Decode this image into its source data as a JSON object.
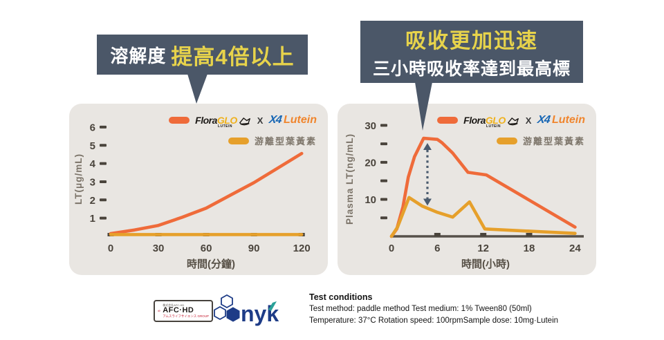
{
  "callouts": {
    "left": {
      "prefix": "溶解度",
      "highlight": "提高4倍以上"
    },
    "right": {
      "line1": "吸收更加迅速",
      "line2": "三小時吸收率達到最高標"
    }
  },
  "legend": {
    "brand_flora": "Flora",
    "brand_glo": "GLO",
    "brand_sub": "LUTEIN",
    "x_sep": "X",
    "partner_mark": "X4",
    "partner_name": "Lutein",
    "free_lutein": "游離型葉黃素"
  },
  "colors": {
    "floraglo_line": "#EF6B3A",
    "free_lutein_line": "#E6A02B",
    "callout_bg": "#4B5768",
    "callout_yellow": "#E7D34B",
    "card_bg": "#E9E6E2",
    "tick": "#4A443C",
    "axis_line": "#56504A",
    "arrow": "#4A5B6E"
  },
  "chart_data": [
    {
      "id": "solubility",
      "type": "line",
      "title": "",
      "xlabel": "時間(分鐘)",
      "ylabel": "LT(μg/mL)",
      "xlim": [
        0,
        126
      ],
      "ylim": [
        0,
        6.3
      ],
      "x_ticks": [
        0,
        30,
        60,
        90,
        120
      ],
      "x_tick_bars": [
        0,
        30,
        60,
        90,
        120
      ],
      "y_ticks": [
        1,
        2,
        3,
        4,
        5,
        6
      ],
      "y_tick_labels": [
        1,
        2,
        3,
        4,
        5,
        6
      ],
      "axis_line": false,
      "margin_left": 60,
      "ylabel_x": 18,
      "series": [
        {
          "name": "FloraGLO X4 Lutein",
          "color": "#EF6B3A",
          "x": [
            0,
            15,
            30,
            45,
            60,
            75,
            90,
            105,
            120
          ],
          "y": [
            0.15,
            0.35,
            0.6,
            1.05,
            1.55,
            2.25,
            2.95,
            3.75,
            4.55
          ]
        },
        {
          "name": "游離型葉黃素",
          "color": "#E6A02B",
          "x": [
            0,
            120
          ],
          "y": [
            0.1,
            0.1
          ]
        }
      ]
    },
    {
      "id": "absorption",
      "type": "line",
      "title": "",
      "xlabel": "時間(小時)",
      "ylabel": "Plasma LT(ng/mL)",
      "xlim": [
        0,
        24.6
      ],
      "ylim": [
        0,
        31
      ],
      "x_ticks": [
        0,
        6,
        12,
        18,
        24
      ],
      "x_tick_bars": [
        6,
        12,
        18
      ],
      "y_ticks": [
        5,
        10,
        15,
        20,
        25,
        30
      ],
      "y_tick_labels": [
        10,
        20,
        30
      ],
      "axis_line": true,
      "margin_left": 78,
      "ylabel_x": 22,
      "series": [
        {
          "name": "FloraGLO X4 Lutein",
          "color": "#EF6B3A",
          "x": [
            0,
            0.7,
            1.5,
            2.2,
            3,
            4.2,
            6,
            6.6,
            8,
            10,
            12.4,
            24
          ],
          "y": [
            0,
            2,
            8,
            16,
            21.5,
            26.5,
            26.2,
            25.3,
            22.5,
            17.3,
            16.6,
            2.5
          ]
        },
        {
          "name": "游離型葉黃素",
          "color": "#E6A02B",
          "x": [
            0,
            0.8,
            2.3,
            4,
            6,
            8,
            10.2,
            12.2,
            16,
            20,
            24
          ],
          "y": [
            0,
            2.5,
            10.5,
            8.2,
            6.5,
            5.2,
            9.3,
            2,
            1.6,
            1.2,
            0.8
          ]
        }
      ],
      "annotation_arrow": {
        "x": 4.7,
        "y1": 8.3,
        "y2": 25.2,
        "color": "#4A5B6E"
      }
    }
  ],
  "footer": {
    "afc": {
      "tiny_top": "株式会社AFC-HD",
      "main": "AFC·HD",
      "tiny_bottom": "アムスライフサイエンス GROUP"
    },
    "nyk": {
      "text": "nyk"
    },
    "test_conditions": {
      "title": "Test conditions",
      "line1": "Test method: paddle method  Test medium: 1% Tween80 (50ml)",
      "line2": "Temperature: 37°C   Rotation speed: 100rpmSample dose: 10mg·Lutein"
    }
  }
}
